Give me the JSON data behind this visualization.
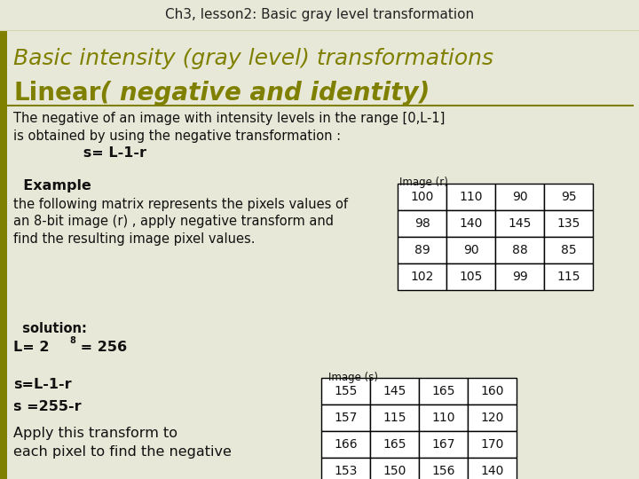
{
  "header_text": "Ch3, lesson2: Basic gray level transformation",
  "header_bg": "#d4dc8a",
  "main_bg": "#e8e8d8",
  "left_bar_color": "#808000",
  "title_line1": "Basic intensity (gray level) transformations",
  "title_line2_bold": "Linear",
  "title_line2_rest": " ( negative and identity)",
  "title_color": "#808000",
  "underline_color": "#808000",
  "body_line1": "The negative of an image with intensity levels in the range [0,L-1]",
  "body_line2": "is obtained by using the negative transformation :",
  "body_line3": "              s= L-1-r",
  "example_bold": "  Example",
  "example_text_line1": "the following matrix represents the pixels values of",
  "example_text_line2": "an 8-bit image (r) , apply negative transform and",
  "example_text_line3": "find the resulting image pixel values.",
  "solution_label": "  solution:",
  "solution_L_pre": "L= 2",
  "solution_sup": "8",
  "solution_L_post": " = 256",
  "formula1": "s=L-1-r",
  "formula2": "s =255-r",
  "apply_line1": "Apply this transform to",
  "apply_line2": "each pixel to find the negative",
  "image_r_label": "Image (r)",
  "image_s_label": "Image (s)",
  "table_r": [
    [
      100,
      110,
      90,
      95
    ],
    [
      98,
      140,
      145,
      135
    ],
    [
      89,
      90,
      88,
      85
    ],
    [
      102,
      105,
      99,
      115
    ]
  ],
  "table_s": [
    [
      155,
      145,
      165,
      160
    ],
    [
      157,
      115,
      110,
      120
    ],
    [
      166,
      165,
      167,
      170
    ],
    [
      153,
      150,
      156,
      140
    ]
  ],
  "header_fontsize": 11,
  "title1_fontsize": 18,
  "title2_fontsize": 20,
  "body_fontsize": 10.5,
  "table_fontsize": 10
}
